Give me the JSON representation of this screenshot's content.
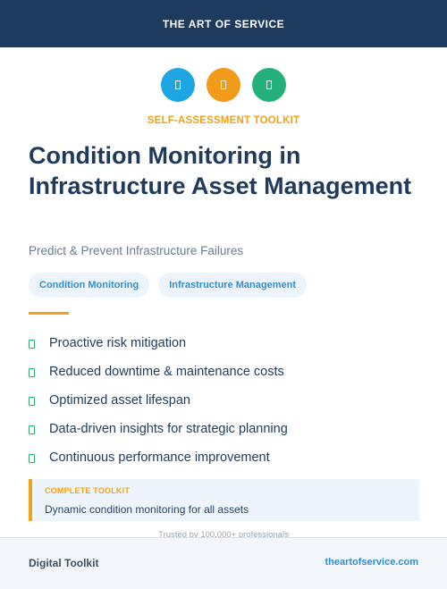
{
  "header": {
    "brand": "THE ART OF SERVICE"
  },
  "icons": [
    {
      "name": "blue-feature-icon",
      "color": "#1ea6e3"
    },
    {
      "name": "orange-feature-icon",
      "color": "#f29a1a"
    },
    {
      "name": "green-feature-icon",
      "color": "#24b07a"
    }
  ],
  "kicker": "SELF-ASSESSMENT TOOLKIT",
  "title": "Condition Monitoring in Infrastructure Asset Management",
  "subtitle": "Predict & Prevent Infrastructure Failures",
  "tags": [
    "Condition Monitoring",
    "Infrastructure Management"
  ],
  "features": [
    "Proactive risk mitigation",
    "Reduced downtime & maintenance costs",
    "Optimized asset lifespan",
    "Data-driven insights for strategic planning",
    "Continuous performance improvement"
  ],
  "callout": {
    "label": "COMPLETE TOOLKIT",
    "text": "Dynamic condition monitoring for all assets"
  },
  "trusted": "Trusted by 100,000+ professionals",
  "footer": {
    "left": "Digital Toolkit",
    "right": "theartofservice.com"
  }
}
